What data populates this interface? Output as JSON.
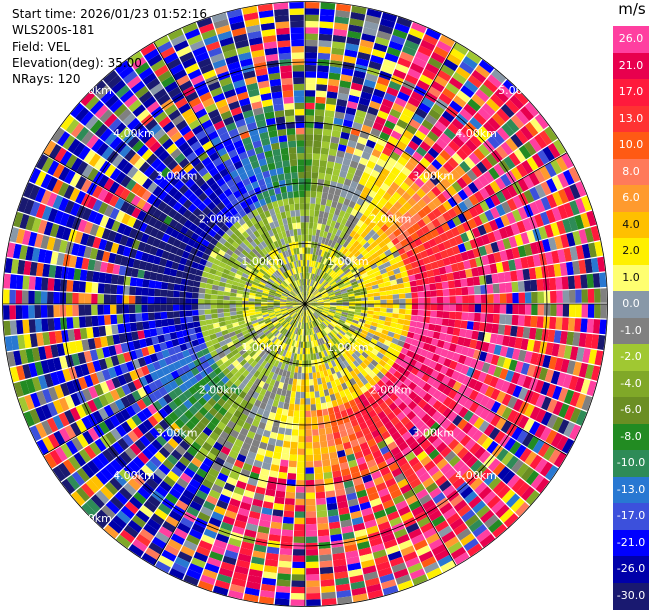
{
  "meta": {
    "start_time": "Start time: 2026/01/23 01:52:16",
    "instrument": "WLS200s-181",
    "field": "Field: VEL",
    "elevation": "Elevation(deg): 35.00",
    "nrays": "NRays: 120"
  },
  "chart_data": {
    "type": "heatmap",
    "projection": "polar",
    "field": "VEL",
    "units": "m/s",
    "n_rays": 120,
    "elevation_deg": 35.0,
    "range_ring_labels": [
      "1.00km",
      "2.00km",
      "3.00km",
      "4.00km",
      "5.00km"
    ],
    "colorbar": {
      "unit_label": "m/s",
      "tick_labels": [
        "26.0",
        "21.0",
        "17.0",
        "13.0",
        "10.0",
        "8.0",
        "6.0",
        "4.0",
        "2.0",
        "1.0",
        "0.0",
        "-1.0",
        "-2.0",
        "-4.0",
        "-6.0",
        "-8.0",
        "-10.0",
        "-13.0",
        "-17.0",
        "-21.0",
        "-26.0",
        "-30.0"
      ],
      "colors": [
        "#ff3fa0",
        "#e8004e",
        "#ff1a3c",
        "#ff3232",
        "#ff5a14",
        "#ff7a5a",
        "#ff9a2e",
        "#ffc000",
        "#fff000",
        "#ffff70",
        "#8898a8",
        "#808080",
        "#a0c832",
        "#80a828",
        "#6b8e23",
        "#228b22",
        "#2e8b57",
        "#2878d2",
        "#3c50dc",
        "#0000ff",
        "#0000aa",
        "#191970"
      ]
    },
    "field_pattern": {
      "near_center": "mixed yellow / olive / gray (about -2 to +4 m/s)",
      "east_southeast": "pink / red (about +13 to +26 m/s)",
      "west_northwest": "navy / blue (about -13 to -30 m/s)",
      "outer_ranges": "noisy multicolor"
    }
  }
}
